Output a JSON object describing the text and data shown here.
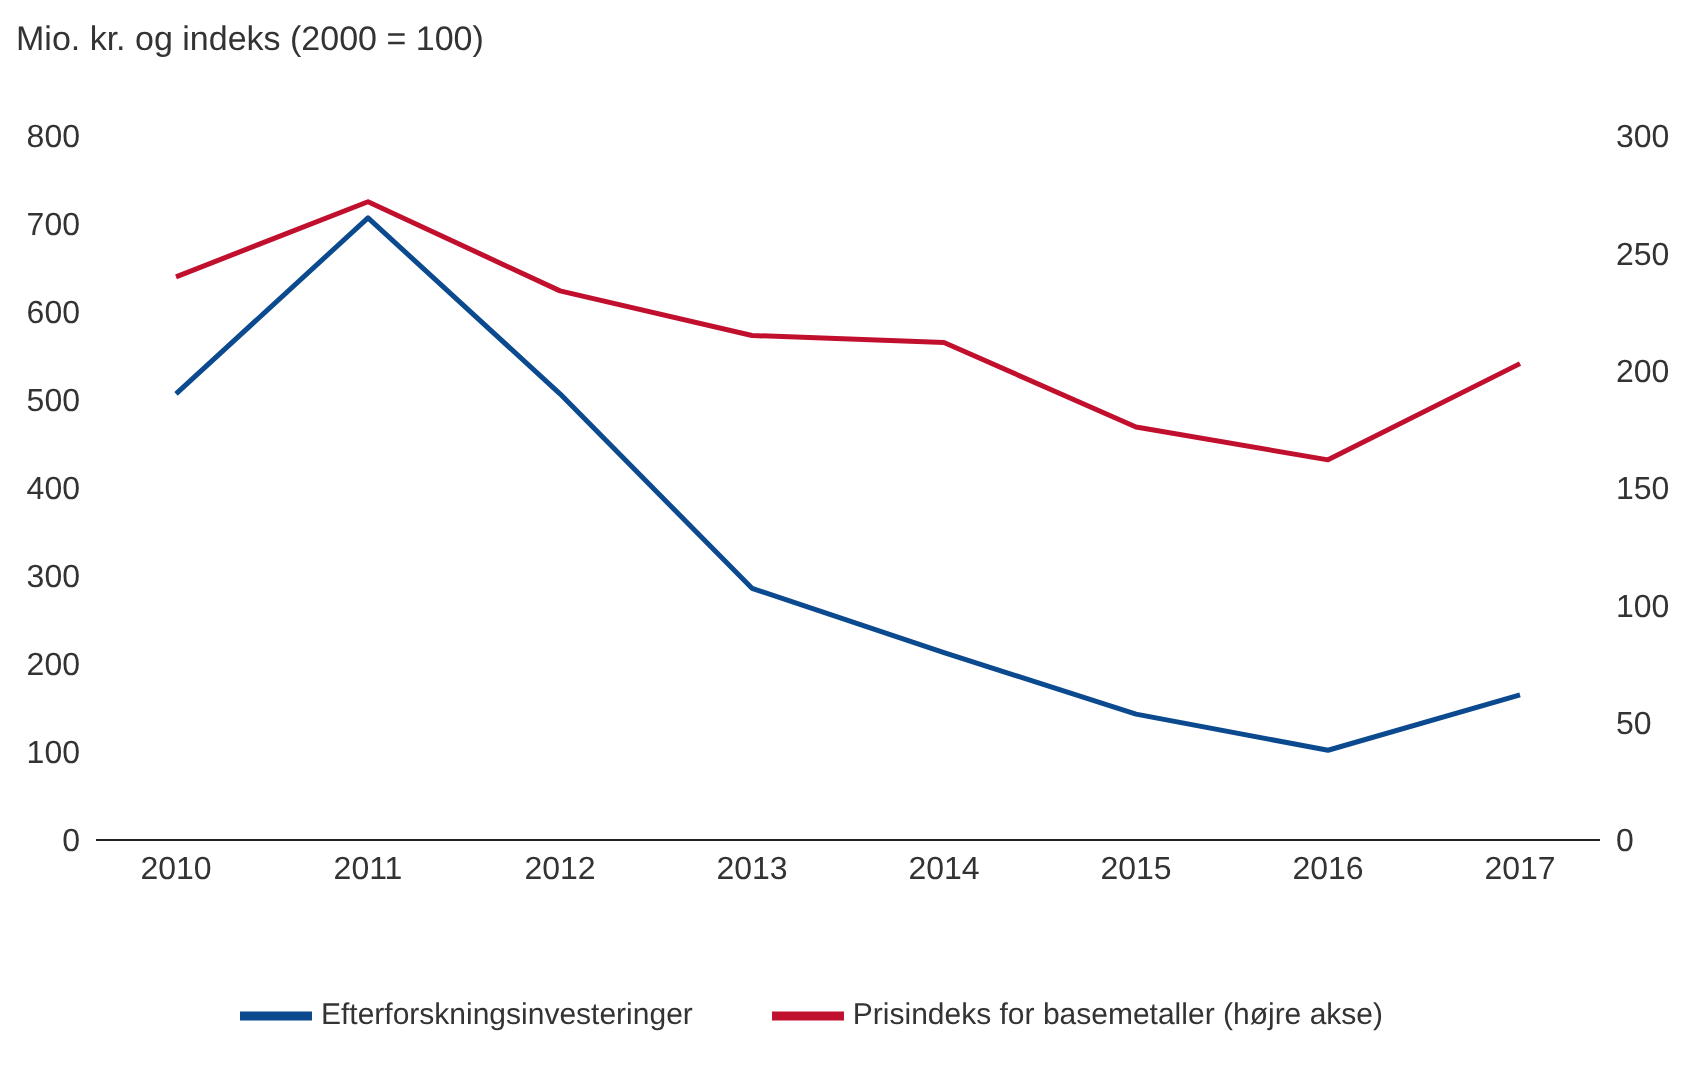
{
  "chart_data": {
    "type": "line",
    "title": "Mio. kr. og indeks (2000 = 100)",
    "categories": [
      "2010",
      "2011",
      "2012",
      "2013",
      "2014",
      "2015",
      "2016",
      "2017"
    ],
    "series": [
      {
        "name": "Efterforskningsinvesteringer",
        "color": "#0b4a8f",
        "values": [
          507,
          707,
          507,
          286,
          213,
          143,
          102,
          165
        ]
      },
      {
        "name": "Prisindeks for basemetaller (højre akse)",
        "color": "#c0102e",
        "values": [
          240,
          272,
          234,
          215,
          212,
          176,
          162,
          203
        ],
        "axis": "y2"
      }
    ],
    "ylim": [
      0,
      800
    ],
    "yticks": [
      0,
      100,
      200,
      300,
      400,
      500,
      600,
      700,
      800
    ],
    "y2lim": [
      0,
      300
    ],
    "y2ticks": [
      0,
      50,
      100,
      150,
      200,
      250,
      300
    ],
    "legend": "bottom",
    "marker": "none",
    "line_style": "solid"
  }
}
